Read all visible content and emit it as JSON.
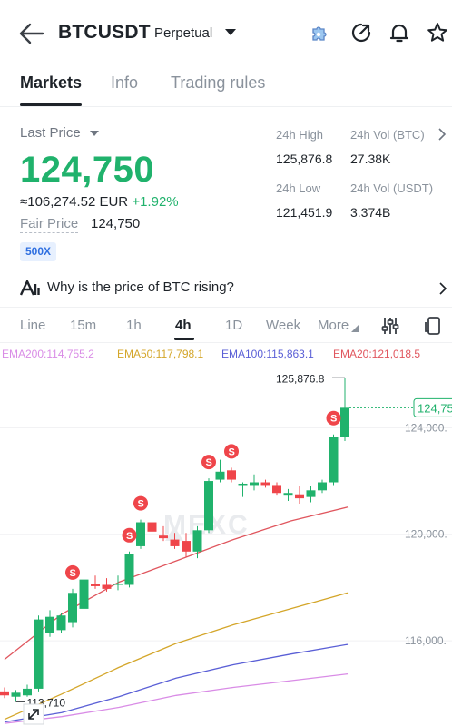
{
  "header": {
    "symbol": "BTCUSDT",
    "contract_type": "Perpetual"
  },
  "tabs": [
    {
      "label": "Markets",
      "active": true
    },
    {
      "label": "Info",
      "active": false
    },
    {
      "label": "Trading rules",
      "active": false
    }
  ],
  "ticker": {
    "last_price_label": "Last Price",
    "last_price": "124,750",
    "converted": "≈106,274.52 EUR",
    "change_pct": "+1.92%",
    "fair_price_label": "Fair Price",
    "fair_price": "124,750",
    "max_leverage": "500X"
  },
  "stats": {
    "high_label": "24h High",
    "high": "125,876.8",
    "vol_btc_label": "24h Vol (BTC)",
    "vol_btc": "27.38K",
    "low_label": "24h Low",
    "low": "121,451.9",
    "vol_usdt_label": "24h Vol (USDT)",
    "vol_usdt": "3.374B"
  },
  "news_prompt": "Why is the price of BTC rising?",
  "timeframes": [
    {
      "label": "Line",
      "active": false
    },
    {
      "label": "15m",
      "active": false
    },
    {
      "label": "1h",
      "active": false
    },
    {
      "label": "4h",
      "active": true
    },
    {
      "label": "1D",
      "active": false
    },
    {
      "label": "Week",
      "active": false
    },
    {
      "label": "More",
      "active": false
    }
  ],
  "ema_legend": {
    "ema200": "EMA200:114,755.2",
    "ema50": "EMA50:117,798.1",
    "ema100": "EMA100:115,863.1",
    "ema20": "EMA20:121,018.5"
  },
  "colors": {
    "up": "#20b26c",
    "down": "#ef454a",
    "ema20": "#e0565e",
    "ema50": "#d4a62a",
    "ema100": "#5a5fd6",
    "ema200": "#d98ce6",
    "sell_marker": "#ef454a"
  },
  "chart_data": {
    "type": "candlestick",
    "interval": "4h",
    "watermark": "MEXC",
    "y_axis_ticks": [
      "124,000.",
      "120,000.",
      "116,000."
    ],
    "ylim": [
      112800,
      126500
    ],
    "last_price_tag": "124,75",
    "high_annotation": "125,876.8",
    "low_annotation": "113,710",
    "sell_marker_label": "S",
    "candles": [
      {
        "o": 114100,
        "h": 114250,
        "l": 113850,
        "c": 113950
      },
      {
        "o": 113900,
        "h": 114150,
        "l": 113710,
        "c": 114050
      },
      {
        "o": 113950,
        "h": 114350,
        "l": 113900,
        "c": 114200
      },
      {
        "o": 114200,
        "h": 116950,
        "l": 114100,
        "c": 116800
      },
      {
        "o": 116300,
        "h": 117150,
        "l": 116150,
        "c": 116900
      },
      {
        "o": 116400,
        "h": 117050,
        "l": 116300,
        "c": 116950
      },
      {
        "o": 116700,
        "h": 117950,
        "l": 116500,
        "c": 117800
      },
      {
        "o": 117200,
        "h": 118350,
        "l": 117000,
        "c": 118300
      },
      {
        "o": 118150,
        "h": 118450,
        "l": 117950,
        "c": 118050
      },
      {
        "o": 118100,
        "h": 118350,
        "l": 117850,
        "c": 117950
      },
      {
        "o": 118100,
        "h": 118450,
        "l": 117900,
        "c": 118150
      },
      {
        "o": 118100,
        "h": 119350,
        "l": 118000,
        "c": 119250
      },
      {
        "o": 119550,
        "h": 120550,
        "l": 119450,
        "c": 120450
      },
      {
        "o": 120450,
        "h": 120650,
        "l": 119950,
        "c": 120100
      },
      {
        "o": 119950,
        "h": 120300,
        "l": 119750,
        "c": 119850
      },
      {
        "o": 119800,
        "h": 120050,
        "l": 119450,
        "c": 119550
      },
      {
        "o": 119750,
        "h": 120050,
        "l": 119150,
        "c": 119350
      },
      {
        "o": 119350,
        "h": 120300,
        "l": 119100,
        "c": 120150
      },
      {
        "o": 120150,
        "h": 122100,
        "l": 120050,
        "c": 122000
      },
      {
        "o": 122050,
        "h": 122800,
        "l": 121950,
        "c": 122350
      },
      {
        "o": 122400,
        "h": 122500,
        "l": 121950,
        "c": 122050
      },
      {
        "o": 121850,
        "h": 121950,
        "l": 121400,
        "c": 121900
      },
      {
        "o": 121850,
        "h": 122250,
        "l": 121650,
        "c": 121950
      },
      {
        "o": 121950,
        "h": 122050,
        "l": 121750,
        "c": 121850
      },
      {
        "o": 121850,
        "h": 121950,
        "l": 121450,
        "c": 121550
      },
      {
        "o": 121450,
        "h": 121700,
        "l": 121250,
        "c": 121550
      },
      {
        "o": 121500,
        "h": 121800,
        "l": 121150,
        "c": 121350
      },
      {
        "o": 121400,
        "h": 121800,
        "l": 121200,
        "c": 121650
      },
      {
        "o": 121650,
        "h": 122050,
        "l": 121550,
        "c": 121950
      },
      {
        "o": 121950,
        "h": 123750,
        "l": 121850,
        "c": 123650
      },
      {
        "o": 123650,
        "h": 125876.8,
        "l": 123500,
        "c": 124750
      }
    ],
    "sell_markers": [
      {
        "candle": 6
      },
      {
        "candle": 11
      },
      {
        "candle": 12
      },
      {
        "candle": 18
      },
      {
        "candle": 20
      },
      {
        "candle": 29
      }
    ],
    "series": [
      {
        "name": "EMA20",
        "values": [
          115300,
          117000,
          118200,
          119000,
          119800,
          120500,
          121018.5
        ]
      },
      {
        "name": "EMA50",
        "values": [
          113050,
          114000,
          115000,
          115900,
          116600,
          117200,
          117798.1
        ]
      },
      {
        "name": "EMA100",
        "values": [
          112950,
          113300,
          113900,
          114600,
          115100,
          115500,
          115863.1
        ]
      },
      {
        "name": "EMA200",
        "values": [
          112900,
          113150,
          113500,
          113950,
          114250,
          114500,
          114755.2
        ]
      }
    ]
  }
}
